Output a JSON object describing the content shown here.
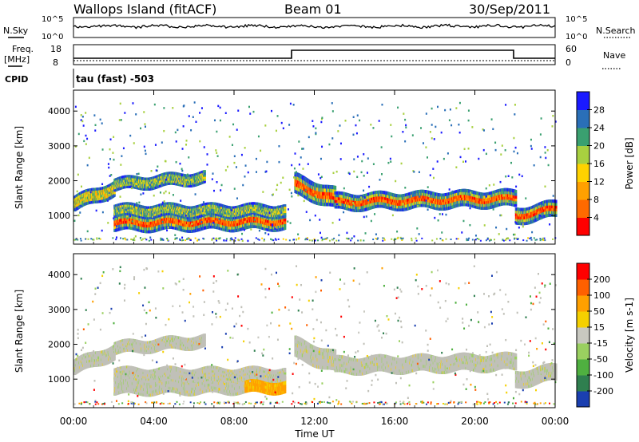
{
  "header": {
    "site": "Wallops Island (fitACF)",
    "beam": "Beam 01",
    "date": "30/Sep/2011"
  },
  "strips": {
    "nsky_label": "N.Sky",
    "nsearch_label": "N.Search",
    "freq_label": "Freq.",
    "freq_unit": "[MHz]",
    "nave_label": "Nave",
    "cpid_label": "CPID",
    "cpid_text": "tau (fast) -503",
    "noise_ticks": [
      "10^5",
      "10^0"
    ],
    "freq_ticks": [
      "18",
      "8"
    ],
    "nave_ticks": [
      "60",
      "0"
    ]
  },
  "chart_data": [
    {
      "type": "heatmap",
      "title": "",
      "xlabel": "",
      "ylabel": "Slant Range [km]",
      "x_ticks": [
        "00:00",
        "04:00",
        "08:00",
        "12:00",
        "16:00",
        "20:00",
        "00:00"
      ],
      "y_ticks": [
        "1000",
        "2000",
        "3000",
        "4000"
      ],
      "ylim": [
        180,
        4600
      ],
      "colorbar": {
        "label": "Power [dB]",
        "ticks": [
          "28",
          "24",
          "20",
          "16",
          "12",
          "8",
          "4"
        ],
        "colors": [
          "#ff0000",
          "#ff6a00",
          "#ffa000",
          "#ffd200",
          "#a8d040",
          "#3aa070",
          "#2a6fb8",
          "#1a1aff"
        ],
        "range": [
          0,
          30
        ]
      },
      "echo_bands_power": [
        {
          "hour_start": 0.0,
          "hour_end": 2.0,
          "range_center": [
            1350,
            1800
          ],
          "half_width": 180,
          "level": "mid-high"
        },
        {
          "hour_start": 2.0,
          "hour_end": 6.5,
          "range_center": [
            1900,
            2100
          ],
          "half_width": 150,
          "level": "mid"
        },
        {
          "hour_start": 2.0,
          "hour_end": 10.5,
          "range_center": [
            800,
            850
          ],
          "half_width": 200,
          "level": "high"
        },
        {
          "hour_start": 2.0,
          "hour_end": 10.5,
          "range_center": [
            1150,
            1150
          ],
          "half_width": 150,
          "level": "mid"
        },
        {
          "hour_start": 11.0,
          "hour_end": 13.0,
          "range_center": [
            1900,
            1500
          ],
          "half_width": 250,
          "level": "high"
        },
        {
          "hour_start": 13.0,
          "hour_end": 22.0,
          "range_center": [
            1400,
            1500
          ],
          "half_width": 200,
          "level": "high"
        },
        {
          "hour_start": 22.0,
          "hour_end": 24.0,
          "range_center": [
            1000,
            1200
          ],
          "half_width": 200,
          "level": "high"
        }
      ]
    },
    {
      "type": "heatmap",
      "title": "",
      "xlabel": "Time UT",
      "ylabel": "Slant Range [km]",
      "x_ticks": [
        "00:00",
        "04:00",
        "08:00",
        "12:00",
        "16:00",
        "20:00",
        "00:00"
      ],
      "y_ticks": [
        "1000",
        "2000",
        "3000",
        "4000"
      ],
      "ylim": [
        180,
        4600
      ],
      "colorbar": {
        "label": "Velocity [m s-1]",
        "ticks": [
          "200",
          "100",
          "50",
          "15",
          "-15",
          "-50",
          "-100",
          "-200"
        ],
        "colors": [
          "#1a3fb0",
          "#2f7f4f",
          "#4fb040",
          "#9ad060",
          "#c8c8c0",
          "#f5d000",
          "#ffa000",
          "#ff6000",
          "#ff0000"
        ],
        "range": [
          -250,
          250
        ]
      },
      "dominant_velocity": "ground scatter (grey, -15 to 15)"
    }
  ],
  "colors": {
    "axis": "#000000",
    "ground_scatter": "#c0c0b8"
  }
}
